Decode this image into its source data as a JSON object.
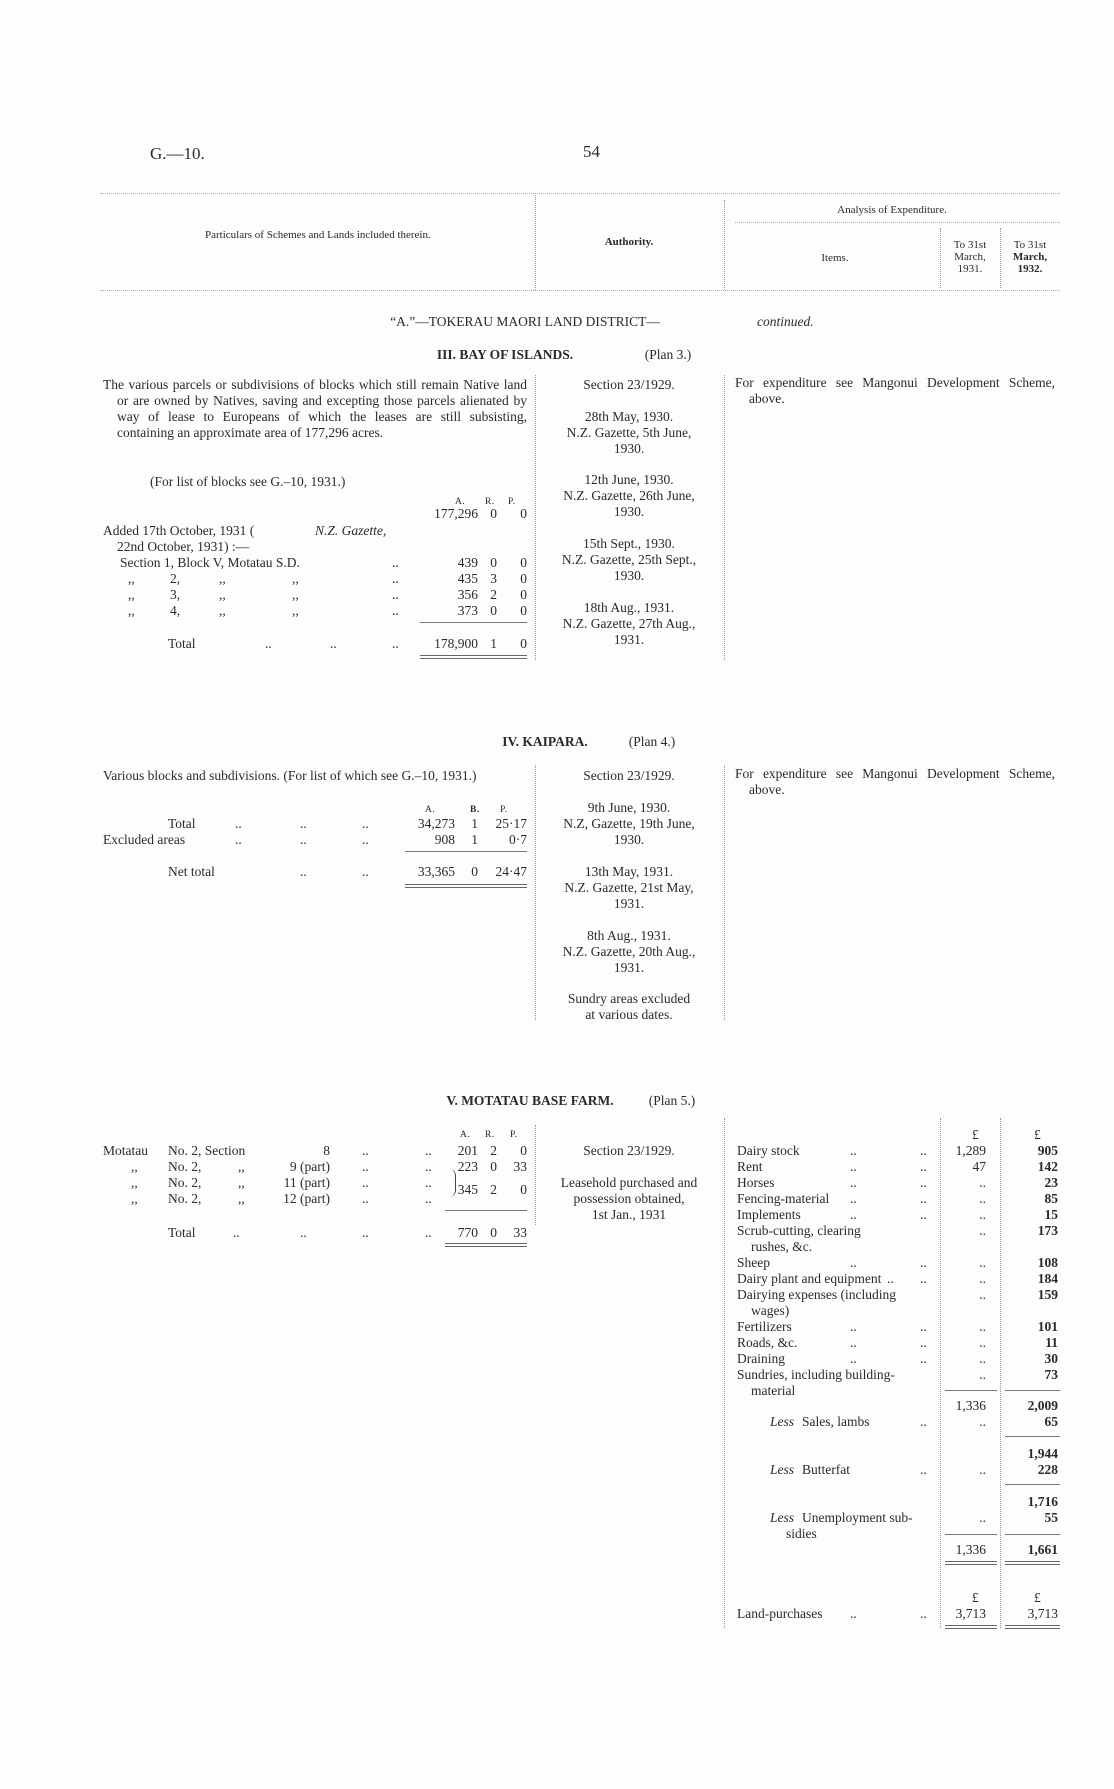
{
  "header": {
    "ref": "G.—10.",
    "page": "54"
  },
  "table_header": {
    "particulars": "Particulars of Schemes and Lands included therein.",
    "authority": "Authority.",
    "analysis": "Analysis of Expenditure.",
    "items": "Items.",
    "col1931": [
      "To 31st",
      "March,",
      "1931."
    ],
    "col1932": [
      "To 31st",
      "March,",
      "1932."
    ]
  },
  "district": {
    "title": "“A.”—TOKERAU MAORI LAND DISTRICT—",
    "continued": "continued."
  },
  "leader": "..",
  "ditto": ",,",
  "units": {
    "a": "A.",
    "r": "R.",
    "p": "P.",
    "r_alt": "B.",
    "pound": "£"
  },
  "sections": [
    {
      "title": "III. BAY OF ISLANDS.",
      "plan": "(Plan 3.)",
      "description": "The various parcels or subdivisions of blocks which still remain Native land or are owned by Natives, saving and excepting those parcels alienated by way of lease to Europeans of which the leases are still subsisting, containing an approximate area of 177,296 acres.",
      "note": "(For list of blocks see G.–10, 1931.)",
      "base_area": [
        "177,296",
        "0",
        "0"
      ],
      "added": [
        "Added 17th October, 1931 (",
        "N.Z. Gazette,",
        "22nd October, 1931) :—"
      ],
      "rows": [
        {
          "label": "Section 1, Block V, Motatau S.D.",
          "a": "439",
          "r": "0",
          "p": "0"
        },
        {
          "label": "2,",
          "a": "435",
          "r": "3",
          "p": "0"
        },
        {
          "label": "3,",
          "a": "356",
          "r": "2",
          "p": "0"
        },
        {
          "label": "4,",
          "a": "373",
          "r": "0",
          "p": "0"
        }
      ],
      "total": {
        "label": "Total",
        "a": "178,900",
        "r": "1",
        "p": "0"
      },
      "authority": [
        [
          "Section 23/1929."
        ],
        [
          "28th May, 1930.",
          "N.Z. Gazette, 5th June,",
          "1930."
        ],
        [
          "12th June, 1930.",
          "N.Z. Gazette, 26th June,",
          "1930."
        ],
        [
          "15th Sept., 1930.",
          "N.Z. Gazette, 25th Sept.,",
          "1930."
        ],
        [
          "18th Aug., 1931.",
          "N.Z. Gazette, 27th Aug.,",
          "1931."
        ]
      ],
      "expenditure": "For expenditure see Mangonui Development Scheme, above."
    },
    {
      "title": "IV. KAIPARA.",
      "plan": "(Plan 4.)",
      "description": "Various blocks and subdivisions. (For list of which see G.–10, 1931.)",
      "rows": [
        {
          "label": "Total",
          "a": "34,273",
          "r": "1",
          "p": "25·17"
        },
        {
          "label": "Excluded areas",
          "a": "908",
          "r": "1",
          "p": "0·7"
        }
      ],
      "total": {
        "label": "Net total",
        "a": "33,365",
        "r": "0",
        "p": "24·47"
      },
      "authority": [
        [
          "Section 23/1929."
        ],
        [
          "9th June, 1930.",
          "N.Z, Gazette, 19th June,",
          "1930."
        ],
        [
          "13th May, 1931.",
          "N.Z. Gazette, 21st May,",
          "1931."
        ],
        [
          "8th Aug., 1931.",
          "N.Z. Gazette, 20th Aug.,",
          "1931."
        ],
        [
          "Sundry areas excluded",
          "at various dates."
        ]
      ],
      "expenditure": "For expenditure see Mangonui Development Scheme, above."
    },
    {
      "title": "V. MOTATAU BASE FARM.",
      "plan": "(Plan 5.)",
      "rows": [
        {
          "block": "Motatau",
          "label": "No. 2, Section",
          "section": "8",
          "a": "201",
          "r": "2",
          "p": "0"
        },
        {
          "block": ",,",
          "label": "No. 2,",
          "section": "9 (part)",
          "a": "223",
          "r": "0",
          "p": "33"
        },
        {
          "block": ",,",
          "label": "No. 2,",
          "section": "11 (part)",
          "a": "345",
          "r": "2",
          "p": "0"
        },
        {
          "block": ",,",
          "label": "No. 2,",
          "section": "12 (part)"
        }
      ],
      "total": {
        "label": "Total",
        "a": "770",
        "r": "0",
        "p": "33"
      },
      "authority": [
        [
          "Section 23/1929."
        ],
        [
          "Leasehold purchased and",
          "possession obtained,",
          "1st Jan., 1931"
        ]
      ],
      "items": [
        {
          "label": "Dairy stock",
          "y1931": "1,289",
          "y1932": "905"
        },
        {
          "label": "Rent",
          "y1931": "47",
          "y1932": "142"
        },
        {
          "label": "Horses",
          "y1931": "..",
          "y1932": "23"
        },
        {
          "label": "Fencing-material",
          "y1931": "..",
          "y1932": "85"
        },
        {
          "label": "Implements",
          "y1931": "..",
          "y1932": "15"
        },
        {
          "label": "Scrub-cutting, clearing",
          "label2": "rushes, &c.",
          "y1931": "..",
          "y1932": "173"
        },
        {
          "label": "Sheep",
          "y1931": "..",
          "y1932": "108"
        },
        {
          "label": "Dairy plant and equipment",
          "y1931": "..",
          "y1932": "184"
        },
        {
          "label": "Dairying expenses (including",
          "label2": "wages)",
          "y1931": "..",
          "y1932": "159"
        },
        {
          "label": "Fertilizers",
          "y1931": "..",
          "y1932": "101"
        },
        {
          "label": "Roads, &c.",
          "y1931": "..",
          "y1932": "11"
        },
        {
          "label": "Draining",
          "y1931": "..",
          "y1932": "30"
        },
        {
          "label": "Sundries, including building-",
          "label2": "material",
          "y1931": "..",
          "y1932": "73"
        }
      ],
      "subtotal": {
        "y1931": "1,336",
        "y1932": "2,009"
      },
      "less_prefix": "Less",
      "less_sales": {
        "label": "Sales, lambs",
        "y1931": "..",
        "y1932": "65"
      },
      "after_sales": "1,944",
      "less_butterfat": {
        "label": "Butterfat",
        "y1931": "..",
        "y1932": "228"
      },
      "after_butterfat": "1,716",
      "less_unemployment": {
        "label": "Unemployment sub-",
        "label2": "sidies",
        "y1931": "..",
        "y1932": "55"
      },
      "net": {
        "y1931": "1,336",
        "y1932": "1,661"
      },
      "land_purchases": {
        "label": "Land-purchases",
        "y1931": "3,713",
        "y1932": "3,713"
      }
    }
  ]
}
